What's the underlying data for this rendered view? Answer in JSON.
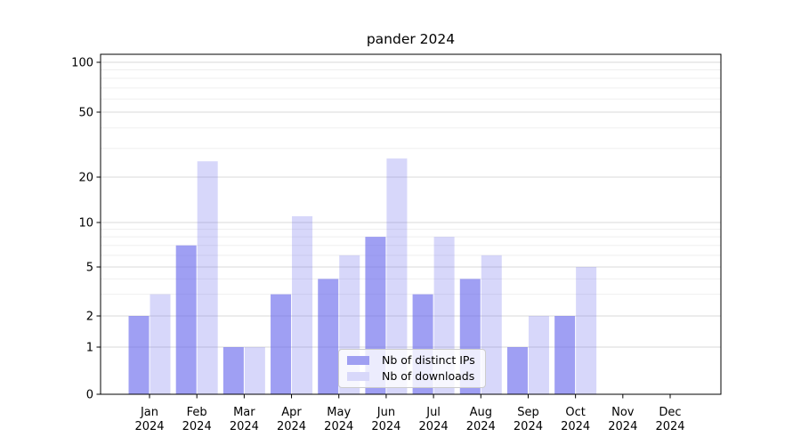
{
  "title": "pander 2024",
  "legend": {
    "items": [
      {
        "label": "Nb of distinct IPs"
      },
      {
        "label": "Nb of downloads"
      }
    ]
  },
  "colors": {
    "bar_base": "#6464eb",
    "ips_fill": "rgba(100, 100, 235, 0.62)",
    "downloads_fill": "rgba(100, 100, 235, 0.26)",
    "ips_solid_approx": "#9f9ff2",
    "downloads_solid_approx": "#d8d8fa",
    "grid_major": "#d9d9d9",
    "grid_minor": "#efefef",
    "axis": "#000000",
    "text": "#000000",
    "legend_border": "#cccccc",
    "legend_bg": "rgba(255,255,255,0.8)"
  },
  "chart_data": {
    "type": "bar",
    "title": "pander 2024",
    "xlabel": "",
    "ylabel": "",
    "categories": [
      "Jan 2024",
      "Feb 2024",
      "Mar 2024",
      "Apr 2024",
      "May 2024",
      "Jun 2024",
      "Jul 2024",
      "Aug 2024",
      "Sep 2024",
      "Oct 2024",
      "Nov 2024",
      "Dec 2024"
    ],
    "series": [
      {
        "name": "Nb of distinct IPs",
        "values": [
          2,
          7,
          1,
          3,
          4,
          8,
          3,
          4,
          1,
          2,
          0,
          0
        ]
      },
      {
        "name": "Nb of downloads",
        "values": [
          3,
          25,
          1,
          11,
          6,
          26,
          8,
          6,
          2,
          5,
          0,
          0
        ]
      }
    ],
    "y_scale": "symlog",
    "y_ticks": [
      0,
      1,
      2,
      5,
      10,
      20,
      50,
      100
    ],
    "y_minor_ticks": [
      3,
      4,
      6,
      7,
      8,
      9,
      30,
      40,
      60,
      70,
      80,
      90
    ],
    "ylim": [
      0,
      112
    ],
    "grid": true,
    "legend_position": "lower center"
  }
}
